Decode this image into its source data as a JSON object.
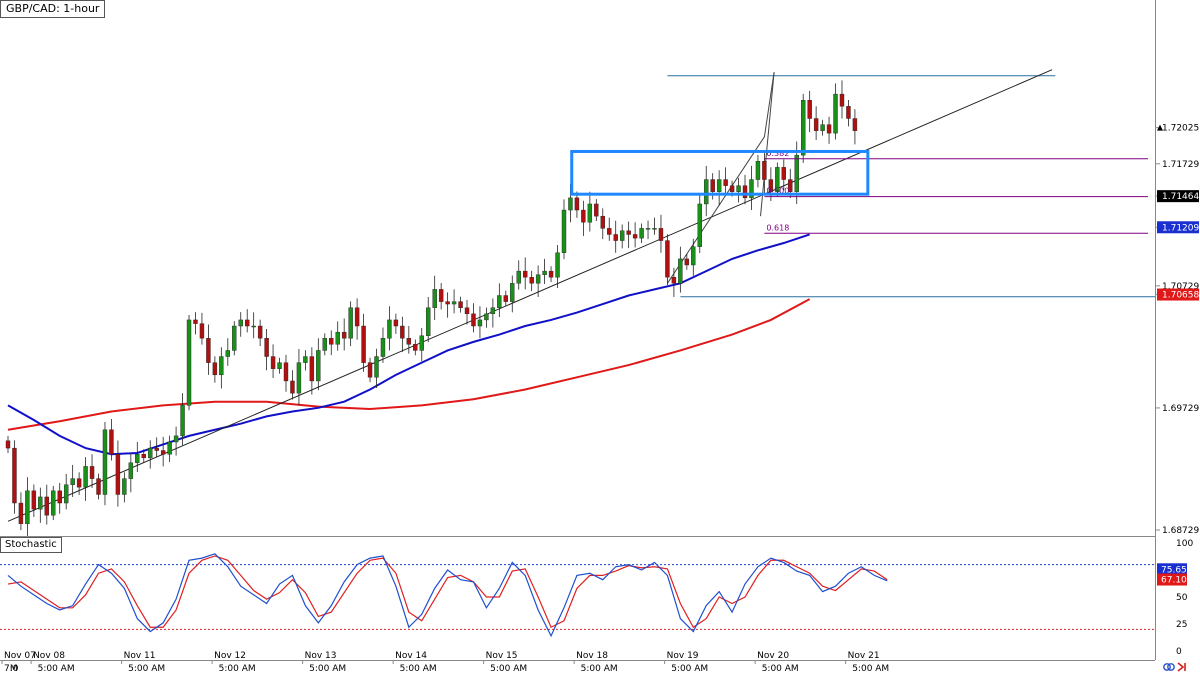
{
  "title": "GBP/CAD: 1-hour",
  "colors": {
    "bull": "#1a8f1a",
    "bear": "#b01010",
    "ma_fast": "#1010c8",
    "ma_slow": "#e01818",
    "stoch_k": "#1e50d0",
    "stoch_d": "#e02020",
    "box": "#1e88ff",
    "fib": "#800080",
    "level": "#2a6f9f"
  },
  "chart_data": {
    "type": "candlestick",
    "title": "GBP/CAD: 1-hour",
    "price_axis": {
      "range": [
        1.68729,
        1.7312
      ],
      "ticks": [
        "1.72025",
        "1.71729",
        "1.71464",
        "1.71209",
        "1.70729",
        "1.70658",
        "1.69729",
        "1.68729"
      ]
    },
    "time_axis": {
      "range": [
        0,
        128
      ],
      "ticks": [
        {
          "x": 0,
          "label": "Nov 07"
        },
        {
          "x": 4.5,
          "label": "Nov 08"
        },
        {
          "x": 18.5,
          "label": "Nov 11"
        },
        {
          "x": 32.5,
          "label": "Nov 12"
        },
        {
          "x": 46.5,
          "label": "Nov 13"
        },
        {
          "x": 60.5,
          "label": "Nov 14"
        },
        {
          "x": 74.5,
          "label": "Nov 15"
        },
        {
          "x": 88.5,
          "label": "Nov 18"
        },
        {
          "x": 102.5,
          "label": "Nov 19"
        },
        {
          "x": 116.5,
          "label": "Nov 20"
        },
        {
          "x": 130.5,
          "label": "Nov 21"
        }
      ],
      "time_ticks": [
        {
          "x": 0,
          "label": "7:0"
        },
        {
          "x": 0.9,
          "label": "M"
        },
        {
          "x": 5.2,
          "label": "5:00 AM"
        },
        {
          "x": 19.2,
          "label": "5:00 AM"
        },
        {
          "x": 33.2,
          "label": "5:00 AM"
        },
        {
          "x": 47.2,
          "label": "5:00 AM"
        },
        {
          "x": 61.2,
          "label": "5:00 AM"
        },
        {
          "x": 75.2,
          "label": "5:00 AM"
        },
        {
          "x": 89.2,
          "label": "5:00 AM"
        },
        {
          "x": 103.2,
          "label": "5:00 AM"
        },
        {
          "x": 117.2,
          "label": "5:00 AM"
        },
        {
          "x": 131.2,
          "label": "5:00 AM"
        }
      ]
    },
    "closes": [
      1.694,
      1.6895,
      1.6878,
      1.6905,
      1.689,
      1.69,
      1.6885,
      1.6905,
      1.6895,
      1.691,
      1.6915,
      1.6908,
      1.6925,
      1.6915,
      1.6902,
      1.6955,
      1.6935,
      1.6902,
      1.6915,
      1.6928,
      1.6935,
      1.6932,
      1.694,
      1.6938,
      1.6935,
      1.6945,
      1.695,
      1.6975,
      1.7045,
      1.7042,
      1.703,
      1.701,
      1.7,
      1.7015,
      1.702,
      1.704,
      1.7045,
      1.704,
      1.704,
      1.703,
      1.7015,
      1.7005,
      1.701,
      1.6995,
      1.6985,
      1.701,
      1.7015,
      1.6995,
      1.702,
      1.703,
      1.7025,
      1.7035,
      1.703,
      1.7055,
      1.704,
      1.701,
      1.6998,
      1.7015,
      1.703,
      1.7045,
      1.704,
      1.703,
      1.7025,
      1.702,
      1.7032,
      1.7055,
      1.707,
      1.706,
      1.7058,
      1.706,
      1.7055,
      1.705,
      1.704,
      1.7045,
      1.705,
      1.7055,
      1.7065,
      1.706,
      1.7075,
      1.7085,
      1.708,
      1.7075,
      1.7082,
      1.7085,
      1.708,
      1.71,
      1.7135,
      1.7145,
      1.7135,
      1.7125,
      1.714,
      1.713,
      1.712,
      1.7115,
      1.711,
      1.7118,
      1.7115,
      1.7112,
      1.712,
      1.712,
      1.712,
      1.711,
      1.708,
      1.7075,
      1.7095,
      1.709,
      1.7105,
      1.714,
      1.716,
      1.715,
      1.716,
      1.7155,
      1.715,
      1.7155,
      1.7145,
      1.716,
      1.7175,
      1.716,
      1.715,
      1.717,
      1.716,
      1.715,
      1.718,
      1.7225,
      1.721,
      1.72,
      1.7205,
      1.7198,
      1.723,
      1.722,
      1.721,
      1.72
    ],
    "ma_fast": [
      [
        0,
        1.6975
      ],
      [
        4,
        1.6963
      ],
      [
        8,
        1.695
      ],
      [
        12,
        1.694
      ],
      [
        16,
        1.6935
      ],
      [
        20,
        1.6936
      ],
      [
        24,
        1.6943
      ],
      [
        28,
        1.695
      ],
      [
        32,
        1.6955
      ],
      [
        36,
        1.696
      ],
      [
        40,
        1.6966
      ],
      [
        44,
        1.697
      ],
      [
        48,
        1.6973
      ],
      [
        52,
        1.6978
      ],
      [
        56,
        1.6988
      ],
      [
        60,
        1.7
      ],
      [
        64,
        1.701
      ],
      [
        68,
        1.702
      ],
      [
        72,
        1.7027
      ],
      [
        76,
        1.7033
      ],
      [
        80,
        1.704
      ],
      [
        84,
        1.7045
      ],
      [
        88,
        1.7051
      ],
      [
        92,
        1.7058
      ],
      [
        96,
        1.7065
      ],
      [
        100,
        1.707
      ],
      [
        104,
        1.7075
      ],
      [
        108,
        1.7085
      ],
      [
        112,
        1.7095
      ],
      [
        116,
        1.7102
      ],
      [
        120,
        1.7108
      ],
      [
        124,
        1.7115
      ]
    ],
    "ma_slow": [
      [
        0,
        1.6955
      ],
      [
        8,
        1.6962
      ],
      [
        16,
        1.697
      ],
      [
        24,
        1.6975
      ],
      [
        32,
        1.6978
      ],
      [
        40,
        1.6978
      ],
      [
        48,
        1.6974
      ],
      [
        56,
        1.6972
      ],
      [
        64,
        1.6975
      ],
      [
        72,
        1.698
      ],
      [
        80,
        1.6988
      ],
      [
        88,
        1.6998
      ],
      [
        96,
        1.7008
      ],
      [
        104,
        1.702
      ],
      [
        112,
        1.7033
      ],
      [
        118,
        1.7045
      ],
      [
        124,
        1.7062
      ]
    ],
    "trend_line": [
      [
        0,
        1.688
      ],
      [
        161.5,
        1.725
      ]
    ],
    "swing_line": [
      [
        102,
        1.7075
      ],
      [
        117,
        1.7195
      ],
      [
        118.5,
        1.7248
      ]
    ],
    "swing_low_line": [
      [
        116.4,
        1.713
      ],
      [
        118.5,
        1.7248
      ]
    ],
    "resistance_line": {
      "x": [
        102,
        162
      ],
      "y": 1.7245
    },
    "support_line": {
      "x": [
        104,
        163
      ],
      "y": 1.7064
    },
    "box": {
      "x": [
        87.2,
        133
      ],
      "y": [
        1.7148,
        1.7183
      ]
    },
    "fib_levels": [
      {
        "label": "0.382",
        "level": 1.7177,
        "x_start": 117
      },
      {
        "label": "0.500",
        "level": 1.7146,
        "x_start": 117
      },
      {
        "label": "0.618",
        "level": 1.7116,
        "x_start": 117
      }
    ],
    "price_tags": [
      {
        "label": "1.72025",
        "value": 1.72025,
        "style": "plain"
      },
      {
        "label": "1.71729",
        "value": 1.71729,
        "style": "plain"
      },
      {
        "label": "1.71464",
        "value": 1.71464,
        "style": "black"
      },
      {
        "label": "1.71209",
        "value": 1.71209,
        "style": "blue"
      },
      {
        "label": "1.70729",
        "value": 1.70729,
        "style": "plain"
      },
      {
        "label": "1.70658",
        "value": 1.70658,
        "style": "red"
      },
      {
        "label": "1.69729",
        "value": 1.69729,
        "style": "plain"
      },
      {
        "label": "1.68729",
        "value": 1.68729,
        "style": "plain"
      }
    ],
    "stochastic": {
      "name": "Stochastic",
      "range": [
        0,
        100
      ],
      "ticks": [
        "100",
        "75",
        "50",
        "25",
        "0"
      ],
      "overbought": 80,
      "oversold": 20,
      "k_value_label": "75.65",
      "d_value_label": "67.10",
      "k_value": 75.65,
      "d_value": 67.1,
      "k": [
        [
          0,
          70
        ],
        [
          2,
          60
        ],
        [
          4,
          52
        ],
        [
          6,
          44
        ],
        [
          8,
          38
        ],
        [
          10,
          42
        ],
        [
          12,
          62
        ],
        [
          14,
          80
        ],
        [
          16,
          72
        ],
        [
          18,
          58
        ],
        [
          20,
          30
        ],
        [
          22,
          18
        ],
        [
          24,
          26
        ],
        [
          26,
          48
        ],
        [
          28,
          84
        ],
        [
          30,
          86
        ],
        [
          32,
          90
        ],
        [
          34,
          78
        ],
        [
          36,
          60
        ],
        [
          38,
          52
        ],
        [
          40,
          44
        ],
        [
          42,
          62
        ],
        [
          44,
          70
        ],
        [
          46,
          42
        ],
        [
          48,
          26
        ],
        [
          50,
          42
        ],
        [
          52,
          64
        ],
        [
          54,
          80
        ],
        [
          56,
          86
        ],
        [
          58,
          88
        ],
        [
          60,
          60
        ],
        [
          62,
          22
        ],
        [
          64,
          34
        ],
        [
          66,
          58
        ],
        [
          68,
          75
        ],
        [
          70,
          66
        ],
        [
          72,
          64
        ],
        [
          74,
          40
        ],
        [
          76,
          58
        ],
        [
          78,
          82
        ],
        [
          80,
          70
        ],
        [
          82,
          38
        ],
        [
          84,
          14
        ],
        [
          86,
          40
        ],
        [
          88,
          70
        ],
        [
          90,
          72
        ],
        [
          92,
          66
        ],
        [
          94,
          78
        ],
        [
          96,
          80
        ],
        [
          98,
          75
        ],
        [
          100,
          82
        ],
        [
          102,
          70
        ],
        [
          104,
          30
        ],
        [
          106,
          18
        ],
        [
          108,
          42
        ],
        [
          110,
          55
        ],
        [
          112,
          36
        ],
        [
          114,
          62
        ],
        [
          116,
          78
        ],
        [
          118,
          86
        ],
        [
          120,
          82
        ],
        [
          122,
          74
        ],
        [
          124,
          70
        ],
        [
          126,
          55
        ],
        [
          128,
          60
        ],
        [
          130,
          72
        ],
        [
          132,
          78
        ],
        [
          134,
          70
        ],
        [
          136,
          65
        ]
      ],
      "d": [
        [
          0,
          62
        ],
        [
          2,
          64
        ],
        [
          4,
          56
        ],
        [
          6,
          48
        ],
        [
          8,
          40
        ],
        [
          10,
          40
        ],
        [
          12,
          52
        ],
        [
          14,
          72
        ],
        [
          16,
          76
        ],
        [
          18,
          64
        ],
        [
          20,
          42
        ],
        [
          22,
          22
        ],
        [
          24,
          22
        ],
        [
          26,
          38
        ],
        [
          28,
          72
        ],
        [
          30,
          84
        ],
        [
          32,
          88
        ],
        [
          34,
          84
        ],
        [
          36,
          70
        ],
        [
          38,
          56
        ],
        [
          40,
          48
        ],
        [
          42,
          54
        ],
        [
          44,
          66
        ],
        [
          46,
          54
        ],
        [
          48,
          32
        ],
        [
          50,
          36
        ],
        [
          52,
          54
        ],
        [
          54,
          72
        ],
        [
          56,
          84
        ],
        [
          58,
          86
        ],
        [
          60,
          72
        ],
        [
          62,
          36
        ],
        [
          64,
          28
        ],
        [
          66,
          48
        ],
        [
          68,
          68
        ],
        [
          70,
          70
        ],
        [
          72,
          64
        ],
        [
          74,
          50
        ],
        [
          76,
          50
        ],
        [
          78,
          74
        ],
        [
          80,
          76
        ],
        [
          82,
          50
        ],
        [
          84,
          22
        ],
        [
          86,
          28
        ],
        [
          88,
          58
        ],
        [
          90,
          70
        ],
        [
          92,
          70
        ],
        [
          94,
          74
        ],
        [
          96,
          79
        ],
        [
          98,
          77
        ],
        [
          100,
          78
        ],
        [
          102,
          76
        ],
        [
          104,
          44
        ],
        [
          106,
          22
        ],
        [
          108,
          30
        ],
        [
          110,
          50
        ],
        [
          112,
          44
        ],
        [
          114,
          50
        ],
        [
          116,
          70
        ],
        [
          118,
          84
        ],
        [
          120,
          84
        ],
        [
          122,
          78
        ],
        [
          124,
          72
        ],
        [
          126,
          60
        ],
        [
          128,
          56
        ],
        [
          130,
          66
        ],
        [
          132,
          76
        ],
        [
          134,
          74
        ],
        [
          136,
          66
        ]
      ]
    }
  }
}
